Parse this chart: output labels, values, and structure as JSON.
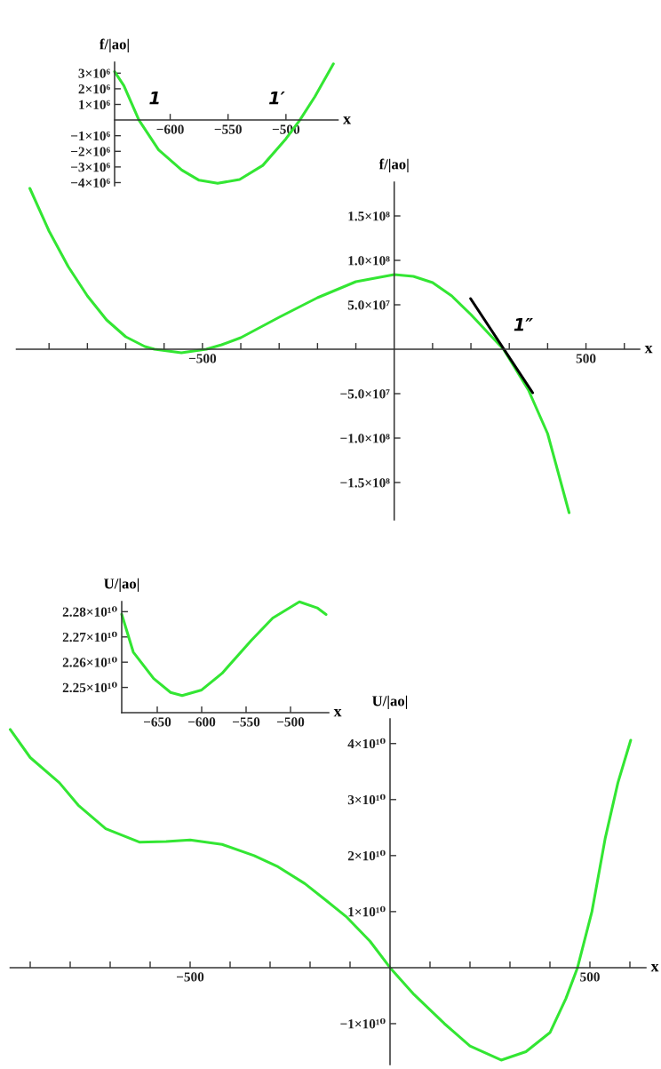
{
  "chart_data": [
    {
      "type": "line",
      "xlabel": "x",
      "ylabel": "f/|ao|",
      "xlim": [
        -648,
        -455
      ],
      "ylim": [
        -4200000,
        3700000
      ],
      "xticks": [
        {
          "value": -600,
          "label": "−600"
        },
        {
          "value": -550,
          "label": "−550"
        },
        {
          "value": -500,
          "label": "−500"
        }
      ],
      "yticks": [
        {
          "value": 3000000,
          "label": "3×10⁶"
        },
        {
          "value": 2000000,
          "label": "2×10⁶"
        },
        {
          "value": 1000000,
          "label": "1×10⁶"
        },
        {
          "value": -1000000,
          "label": "−1×10⁶"
        },
        {
          "value": -2000000,
          "label": "−2×10⁶"
        },
        {
          "value": -3000000,
          "label": "−3×10⁶"
        },
        {
          "value": -4000000,
          "label": "−4×10⁶"
        }
      ],
      "series": [
        {
          "color": "#33e633",
          "x": [
            -648,
            -640,
            -627,
            -610,
            -590,
            -575,
            -559,
            -540,
            -520,
            -500,
            -488,
            -475,
            -459
          ],
          "values": [
            3100000,
            2200000,
            0,
            -1900000,
            -3200000,
            -3850000,
            -4050000,
            -3800000,
            -2900000,
            -1200000,
            0,
            1500000,
            3600000
          ]
        }
      ],
      "annotations": [
        {
          "text": "1",
          "x": -627,
          "y": 0
        },
        {
          "text": "1′",
          "x": -488,
          "y": 0
        }
      ]
    },
    {
      "type": "line",
      "xlabel": "x",
      "ylabel": "f/|ao|",
      "xlim": [
        -985,
        640
      ],
      "ylim": [
        -192000000,
        188000000
      ],
      "xticks": [
        {
          "value": -900,
          "label": null
        },
        {
          "value": -800,
          "label": null
        },
        {
          "value": -700,
          "label": null
        },
        {
          "value": -600,
          "label": null
        },
        {
          "value": -500,
          "label": "−500"
        },
        {
          "value": -400,
          "label": null
        },
        {
          "value": -300,
          "label": null
        },
        {
          "value": -200,
          "label": null
        },
        {
          "value": -100,
          "label": null
        },
        {
          "value": 100,
          "label": null
        },
        {
          "value": 200,
          "label": null
        },
        {
          "value": 300,
          "label": null
        },
        {
          "value": 400,
          "label": null
        },
        {
          "value": 500,
          "label": "500"
        },
        {
          "value": 600,
          "label": null
        }
      ],
      "yticks": [
        {
          "value": 150000000,
          "label": "1.5×10⁸"
        },
        {
          "value": 100000000,
          "label": "1.0×10⁸"
        },
        {
          "value": 50000000,
          "label": "5.0×10⁷"
        },
        {
          "value": -50000000,
          "label": "−5.0×10⁷"
        },
        {
          "value": -100000000,
          "label": "−1.0×10⁸"
        },
        {
          "value": -150000000,
          "label": "−1.5×10⁸"
        }
      ],
      "series": [
        {
          "color": "#33e633",
          "x": [
            -950,
            -900,
            -850,
            -800,
            -750,
            -700,
            -650,
            -625,
            -555,
            -490,
            -450,
            -400,
            -300,
            -200,
            -100,
            0,
            50,
            100,
            150,
            200,
            250,
            285,
            350,
            400,
            456
          ],
          "values": [
            181000000,
            133000000,
            93000000,
            60000000,
            33000000,
            14000000,
            3000000,
            0,
            -4000000,
            0,
            5000000,
            13000000,
            36000000,
            58000000,
            76000000,
            84000000,
            82000000,
            75000000,
            60000000,
            39000000,
            16000000,
            0,
            -46000000,
            -95000000,
            -184000000
          ]
        },
        {
          "color": "#000000",
          "x": [
            199,
            361
          ],
          "values": [
            57000000,
            -49000000
          ]
        }
      ],
      "annotations": [
        {
          "text": "1″",
          "x": 285,
          "y": 0
        }
      ]
    },
    {
      "type": "line",
      "xlabel": "x",
      "ylabel": "U/|ao|",
      "xlim": [
        -690,
        -457
      ],
      "ylim": [
        22400000000,
        22840000000
      ],
      "xticks": [
        {
          "value": -650,
          "label": "−650"
        },
        {
          "value": -600,
          "label": "−600"
        },
        {
          "value": -550,
          "label": "−550"
        },
        {
          "value": -500,
          "label": "−500"
        }
      ],
      "yticks": [
        {
          "value": 22800000000,
          "label": "2.28×10¹⁰"
        },
        {
          "value": 22700000000,
          "label": "2.27×10¹⁰"
        },
        {
          "value": 22600000000,
          "label": "2.26×10¹⁰"
        },
        {
          "value": 22500000000,
          "label": "2.25×10¹⁰"
        }
      ],
      "series": [
        {
          "color": "#33e633",
          "x": [
            -690,
            -677,
            -654,
            -635,
            -622,
            -600,
            -577,
            -544,
            -520,
            -490,
            -470,
            -460
          ],
          "values": [
            22790000000,
            22640000000,
            22535000000,
            22480000000,
            22468000000,
            22490000000,
            22556000000,
            22687000000,
            22775000000,
            22839000000,
            22815000000,
            22789000000
          ]
        }
      ]
    },
    {
      "type": "line",
      "xlabel": "x",
      "ylabel": "U/|ao|",
      "xlim": [
        -950,
        640
      ],
      "ylim": [
        -17300000000,
        44400000000
      ],
      "xticks": [
        {
          "value": -900,
          "label": null
        },
        {
          "value": -800,
          "label": null
        },
        {
          "value": -700,
          "label": null
        },
        {
          "value": -600,
          "label": null
        },
        {
          "value": -500,
          "label": "−500"
        },
        {
          "value": -400,
          "label": null
        },
        {
          "value": -300,
          "label": null
        },
        {
          "value": -200,
          "label": null
        },
        {
          "value": -100,
          "label": null
        },
        {
          "value": 100,
          "label": null
        },
        {
          "value": 200,
          "label": null
        },
        {
          "value": 300,
          "label": null
        },
        {
          "value": 400,
          "label": null
        },
        {
          "value": 500,
          "label": "500"
        },
        {
          "value": 600,
          "label": null
        }
      ],
      "yticks": [
        {
          "value": 40000000000,
          "label": "4×10¹⁰"
        },
        {
          "value": 30000000000,
          "label": "3×10¹⁰"
        },
        {
          "value": 20000000000,
          "label": "2×10¹⁰"
        },
        {
          "value": 10000000000,
          "label": "1×10¹⁰"
        },
        {
          "value": -10000000000,
          "label": "−1×10¹⁰"
        }
      ],
      "series": [
        {
          "color": "#33e633",
          "x": [
            -950,
            -900,
            -827,
            -780,
            -711,
            -627,
            -560,
            -500,
            -420,
            -340,
            -280,
            -213,
            -160,
            -108,
            -50,
            0,
            60,
            136,
            200,
            278,
            340,
            400,
            440,
            469,
            505,
            538,
            570,
            602
          ],
          "values": [
            42500000000,
            37500000000,
            33000000000,
            29000000000,
            24800000000,
            22400000000,
            22500000000,
            22800000000,
            22000000000,
            20000000000,
            18000000000,
            15000000000,
            12000000000,
            9000000000,
            4700000000,
            0,
            -4800000000,
            -10000000000,
            -14000000000,
            -16500000000,
            -15000000000,
            -11600000000,
            -5500000000,
            0,
            10000000000,
            23000000000,
            33000000000,
            40600000000
          ]
        }
      ]
    }
  ]
}
